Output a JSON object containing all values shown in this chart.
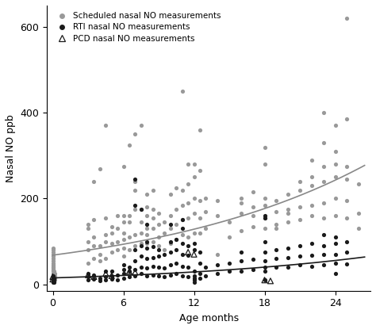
{
  "title": "",
  "xlabel": "Age months",
  "ylabel": "Nasal NO ppb",
  "xlim": [
    -0.5,
    27
  ],
  "ylim": [
    -15,
    650
  ],
  "xticks": [
    0,
    6,
    12,
    18,
    24
  ],
  "yticks": [
    0,
    200,
    400,
    600
  ],
  "background_color": "#ffffff",
  "scheduled_points": [
    [
      0.0,
      5
    ],
    [
      0.0,
      8
    ],
    [
      0.0,
      10
    ],
    [
      0.0,
      12
    ],
    [
      0.0,
      15
    ],
    [
      0.0,
      18
    ],
    [
      0.0,
      20
    ],
    [
      0.0,
      22
    ],
    [
      0.0,
      25
    ],
    [
      0.0,
      30
    ],
    [
      0.0,
      32
    ],
    [
      0.0,
      35
    ],
    [
      0.0,
      38
    ],
    [
      0.0,
      40
    ],
    [
      0.0,
      42
    ],
    [
      0.0,
      45
    ],
    [
      0.0,
      50
    ],
    [
      0.0,
      55
    ],
    [
      0.0,
      60
    ],
    [
      0.0,
      65
    ],
    [
      0.0,
      70
    ],
    [
      0.0,
      75
    ],
    [
      0.0,
      80
    ],
    [
      0.0,
      85
    ],
    [
      0.1,
      5
    ],
    [
      0.1,
      10
    ],
    [
      0.1,
      15
    ],
    [
      0.1,
      20
    ],
    [
      0.1,
      25
    ],
    [
      0.1,
      30
    ],
    [
      0.2,
      10
    ],
    [
      0.2,
      15
    ],
    [
      0.2,
      20
    ],
    [
      0.2,
      25
    ],
    [
      3.0,
      50
    ],
    [
      3.0,
      80
    ],
    [
      3.0,
      100
    ],
    [
      3.0,
      130
    ],
    [
      3.0,
      140
    ],
    [
      3.5,
      60
    ],
    [
      3.5,
      90
    ],
    [
      3.5,
      110
    ],
    [
      3.5,
      150
    ],
    [
      3.5,
      240
    ],
    [
      4.0,
      55
    ],
    [
      4.0,
      70
    ],
    [
      4.0,
      90
    ],
    [
      4.0,
      270
    ],
    [
      4.5,
      60
    ],
    [
      4.5,
      100
    ],
    [
      4.5,
      115
    ],
    [
      4.5,
      155
    ],
    [
      4.5,
      370
    ],
    [
      5.0,
      75
    ],
    [
      5.0,
      95
    ],
    [
      5.0,
      120
    ],
    [
      5.0,
      135
    ],
    [
      5.5,
      80
    ],
    [
      5.5,
      100
    ],
    [
      5.5,
      130
    ],
    [
      5.5,
      160
    ],
    [
      6.0,
      65
    ],
    [
      6.0,
      85
    ],
    [
      6.0,
      105
    ],
    [
      6.0,
      120
    ],
    [
      6.0,
      145
    ],
    [
      6.0,
      160
    ],
    [
      6.0,
      275
    ],
    [
      6.5,
      80
    ],
    [
      6.5,
      110
    ],
    [
      6.5,
      145
    ],
    [
      6.5,
      160
    ],
    [
      6.5,
      325
    ],
    [
      7.0,
      90
    ],
    [
      7.0,
      115
    ],
    [
      7.0,
      175
    ],
    [
      7.0,
      220
    ],
    [
      7.0,
      240
    ],
    [
      7.0,
      350
    ],
    [
      7.5,
      95
    ],
    [
      7.5,
      120
    ],
    [
      7.5,
      145
    ],
    [
      7.5,
      175
    ],
    [
      7.5,
      370
    ],
    [
      8.0,
      95
    ],
    [
      8.0,
      115
    ],
    [
      8.0,
      130
    ],
    [
      8.0,
      160
    ],
    [
      8.0,
      180
    ],
    [
      8.0,
      210
    ],
    [
      8.5,
      100
    ],
    [
      8.5,
      130
    ],
    [
      8.5,
      155
    ],
    [
      8.5,
      175
    ],
    [
      8.5,
      220
    ],
    [
      9.0,
      90
    ],
    [
      9.0,
      110
    ],
    [
      9.0,
      140
    ],
    [
      9.0,
      165
    ],
    [
      9.5,
      80
    ],
    [
      9.5,
      120
    ],
    [
      9.5,
      145
    ],
    [
      10.0,
      95
    ],
    [
      10.0,
      130
    ],
    [
      10.0,
      160
    ],
    [
      10.0,
      210
    ],
    [
      10.5,
      105
    ],
    [
      10.5,
      140
    ],
    [
      10.5,
      175
    ],
    [
      10.5,
      225
    ],
    [
      11.0,
      115
    ],
    [
      11.0,
      150
    ],
    [
      11.0,
      185
    ],
    [
      11.0,
      220
    ],
    [
      11.0,
      450
    ],
    [
      11.5,
      110
    ],
    [
      11.5,
      155
    ],
    [
      11.5,
      190
    ],
    [
      11.5,
      235
    ],
    [
      11.5,
      280
    ],
    [
      12.0,
      120
    ],
    [
      12.0,
      165
    ],
    [
      12.0,
      200
    ],
    [
      12.0,
      250
    ],
    [
      12.0,
      280
    ],
    [
      12.5,
      120
    ],
    [
      12.5,
      155
    ],
    [
      12.5,
      195
    ],
    [
      12.5,
      265
    ],
    [
      12.5,
      360
    ],
    [
      13.0,
      130
    ],
    [
      13.0,
      170
    ],
    [
      13.0,
      200
    ],
    [
      14.0,
      70
    ],
    [
      14.0,
      160
    ],
    [
      14.0,
      195
    ],
    [
      15.0,
      110
    ],
    [
      15.0,
      145
    ],
    [
      16.0,
      125
    ],
    [
      16.0,
      165
    ],
    [
      16.0,
      190
    ],
    [
      16.0,
      200
    ],
    [
      17.0,
      135
    ],
    [
      17.0,
      160
    ],
    [
      17.0,
      180
    ],
    [
      17.0,
      215
    ],
    [
      18.0,
      130
    ],
    [
      18.0,
      155
    ],
    [
      18.0,
      185
    ],
    [
      18.0,
      200
    ],
    [
      18.0,
      280
    ],
    [
      18.0,
      320
    ],
    [
      19.0,
      140
    ],
    [
      19.0,
      170
    ],
    [
      19.0,
      195
    ],
    [
      19.0,
      130
    ],
    [
      20.0,
      145
    ],
    [
      20.0,
      175
    ],
    [
      20.0,
      210
    ],
    [
      20.0,
      165
    ],
    [
      21.0,
      150
    ],
    [
      21.0,
      180
    ],
    [
      21.0,
      220
    ],
    [
      21.0,
      240
    ],
    [
      22.0,
      160
    ],
    [
      22.0,
      185
    ],
    [
      22.0,
      230
    ],
    [
      22.0,
      250
    ],
    [
      22.0,
      290
    ],
    [
      23.0,
      155
    ],
    [
      23.0,
      190
    ],
    [
      23.0,
      240
    ],
    [
      23.0,
      275
    ],
    [
      23.0,
      330
    ],
    [
      23.0,
      400
    ],
    [
      24.0,
      160
    ],
    [
      24.0,
      200
    ],
    [
      24.0,
      250
    ],
    [
      24.0,
      280
    ],
    [
      24.0,
      310
    ],
    [
      24.0,
      370
    ],
    [
      25.0,
      155
    ],
    [
      25.0,
      195
    ],
    [
      25.0,
      245
    ],
    [
      25.0,
      275
    ],
    [
      25.0,
      385
    ],
    [
      25.0,
      620
    ],
    [
      26.0,
      130
    ],
    [
      26.0,
      165
    ],
    [
      26.0,
      235
    ]
  ],
  "rti_points": [
    [
      0.0,
      5
    ],
    [
      0.0,
      8
    ],
    [
      0.0,
      12
    ],
    [
      0.0,
      15
    ],
    [
      0.0,
      18
    ],
    [
      0.0,
      20
    ],
    [
      0.1,
      5
    ],
    [
      0.1,
      10
    ],
    [
      0.1,
      15
    ],
    [
      3.0,
      10
    ],
    [
      3.0,
      18
    ],
    [
      3.0,
      25
    ],
    [
      3.5,
      12
    ],
    [
      3.5,
      22
    ],
    [
      4.0,
      8
    ],
    [
      4.0,
      15
    ],
    [
      4.5,
      10
    ],
    [
      4.5,
      18
    ],
    [
      4.5,
      30
    ],
    [
      5.0,
      12
    ],
    [
      5.0,
      20
    ],
    [
      5.0,
      30
    ],
    [
      5.5,
      10
    ],
    [
      5.5,
      22
    ],
    [
      6.0,
      15
    ],
    [
      6.0,
      25
    ],
    [
      6.0,
      35
    ],
    [
      6.0,
      45
    ],
    [
      6.5,
      18
    ],
    [
      6.5,
      30
    ],
    [
      6.5,
      40
    ],
    [
      7.0,
      20
    ],
    [
      7.0,
      35
    ],
    [
      7.0,
      55
    ],
    [
      7.0,
      80
    ],
    [
      7.0,
      185
    ],
    [
      7.0,
      245
    ],
    [
      7.5,
      25
    ],
    [
      7.5,
      40
    ],
    [
      7.5,
      65
    ],
    [
      7.5,
      90
    ],
    [
      7.5,
      175
    ],
    [
      8.0,
      20
    ],
    [
      8.0,
      38
    ],
    [
      8.0,
      60
    ],
    [
      8.0,
      85
    ],
    [
      8.0,
      100
    ],
    [
      8.0,
      140
    ],
    [
      8.5,
      22
    ],
    [
      8.5,
      42
    ],
    [
      8.5,
      62
    ],
    [
      8.5,
      88
    ],
    [
      9.0,
      20
    ],
    [
      9.0,
      40
    ],
    [
      9.0,
      65
    ],
    [
      9.0,
      80
    ],
    [
      9.5,
      18
    ],
    [
      9.5,
      38
    ],
    [
      9.5,
      70
    ],
    [
      10.0,
      22
    ],
    [
      10.0,
      45
    ],
    [
      10.0,
      75
    ],
    [
      10.0,
      100
    ],
    [
      10.0,
      140
    ],
    [
      10.5,
      25
    ],
    [
      10.5,
      50
    ],
    [
      10.5,
      80
    ],
    [
      10.5,
      105
    ],
    [
      11.0,
      20
    ],
    [
      11.0,
      42
    ],
    [
      11.0,
      70
    ],
    [
      11.0,
      95
    ],
    [
      11.0,
      130
    ],
    [
      11.0,
      150
    ],
    [
      11.5,
      18
    ],
    [
      11.5,
      40
    ],
    [
      11.5,
      68
    ],
    [
      11.5,
      90
    ],
    [
      12.0,
      5
    ],
    [
      12.0,
      10
    ],
    [
      12.0,
      15
    ],
    [
      12.0,
      20
    ],
    [
      12.0,
      30
    ],
    [
      12.0,
      80
    ],
    [
      12.0,
      95
    ],
    [
      12.5,
      15
    ],
    [
      12.5,
      25
    ],
    [
      12.5,
      50
    ],
    [
      12.5,
      75
    ],
    [
      13.0,
      20
    ],
    [
      13.0,
      40
    ],
    [
      14.0,
      25
    ],
    [
      14.0,
      45
    ],
    [
      15.0,
      30
    ],
    [
      15.0,
      50
    ],
    [
      16.0,
      30
    ],
    [
      16.0,
      55
    ],
    [
      16.0,
      75
    ],
    [
      17.0,
      35
    ],
    [
      17.0,
      58
    ],
    [
      18.0,
      10
    ],
    [
      18.0,
      30
    ],
    [
      18.0,
      40
    ],
    [
      18.0,
      55
    ],
    [
      18.0,
      75
    ],
    [
      18.0,
      100
    ],
    [
      18.0,
      155
    ],
    [
      18.0,
      160
    ],
    [
      19.0,
      40
    ],
    [
      19.0,
      60
    ],
    [
      19.0,
      80
    ],
    [
      20.0,
      40
    ],
    [
      20.0,
      62
    ],
    [
      20.0,
      85
    ],
    [
      21.0,
      45
    ],
    [
      21.0,
      65
    ],
    [
      21.0,
      90
    ],
    [
      22.0,
      42
    ],
    [
      22.0,
      68
    ],
    [
      22.0,
      95
    ],
    [
      23.0,
      45
    ],
    [
      23.0,
      70
    ],
    [
      23.0,
      90
    ],
    [
      23.0,
      115
    ],
    [
      24.0,
      25
    ],
    [
      24.0,
      50
    ],
    [
      24.0,
      70
    ],
    [
      24.0,
      95
    ],
    [
      24.0,
      110
    ],
    [
      25.0,
      48
    ],
    [
      25.0,
      75
    ],
    [
      25.0,
      100
    ]
  ],
  "pcd_points": [
    [
      0.0,
      12
    ],
    [
      0.0,
      18
    ],
    [
      3.0,
      22
    ],
    [
      3.5,
      18
    ],
    [
      4.5,
      25
    ],
    [
      5.0,
      20
    ],
    [
      6.5,
      30
    ],
    [
      7.0,
      28
    ],
    [
      11.5,
      75
    ],
    [
      12.0,
      70
    ],
    [
      18.0,
      10
    ],
    [
      18.5,
      8
    ]
  ],
  "scheduled_color": "#999999",
  "rti_color": "#1a1a1a",
  "pcd_color": "#1a1a1a",
  "curve_gray_color": "#888888",
  "curve_black_color": "#1a1a1a",
  "gray_curve_x0": 0,
  "gray_curve_y0": 68,
  "gray_curve_x1": 26,
  "gray_curve_y1": 270,
  "black_curve_x0": 0,
  "black_curve_y0": 15,
  "black_curve_x1": 26,
  "black_curve_y1": 62
}
